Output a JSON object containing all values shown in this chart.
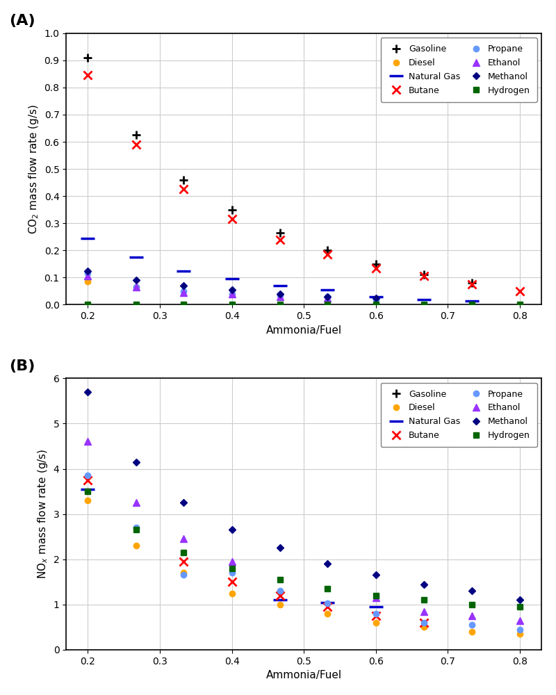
{
  "x_values": [
    0.2,
    0.267,
    0.333,
    0.4,
    0.467,
    0.533,
    0.6,
    0.667,
    0.733,
    0.8
  ],
  "A": {
    "ylabel": "CO$_2$ mass flow rate (g/s)",
    "xlabel": "Ammonia/Fuel",
    "ylim": [
      0,
      1.0
    ],
    "yticks": [
      0,
      0.1,
      0.2,
      0.3,
      0.4,
      0.5,
      0.6,
      0.7,
      0.8,
      0.9,
      1.0
    ],
    "gasoline": [
      0.91,
      0.625,
      0.46,
      0.35,
      0.265,
      0.2,
      0.15,
      0.11,
      0.08,
      null
    ],
    "diesel": [
      0.085,
      0.065,
      null,
      null,
      null,
      null,
      null,
      null,
      null,
      null
    ],
    "natural_gas": [
      0.245,
      0.175,
      0.125,
      0.095,
      0.07,
      0.055,
      0.03,
      0.02,
      0.015,
      null
    ],
    "butane": [
      0.845,
      0.59,
      0.425,
      0.315,
      0.24,
      0.185,
      0.135,
      0.105,
      0.075,
      0.05
    ],
    "propane": [
      0.115,
      0.065,
      0.05,
      0.04,
      0.035,
      0.03,
      0.02,
      null,
      null,
      null
    ],
    "ethanol": [
      0.105,
      0.065,
      0.045,
      0.04,
      0.03,
      0.025,
      null,
      null,
      null,
      null
    ],
    "methanol": [
      0.125,
      0.09,
      0.07,
      0.055,
      0.04,
      0.03,
      0.025,
      null,
      null,
      null
    ],
    "hydrogen": [
      0.0,
      0.0,
      0.0,
      0.0,
      0.0,
      0.0,
      0.0,
      0.0,
      0.0,
      0.0
    ]
  },
  "B": {
    "ylabel": "NO$_x$ mass flow rate (g/s)",
    "xlabel": "Ammonia/Fuel",
    "ylim": [
      0,
      6.0
    ],
    "yticks": [
      0,
      1,
      2,
      3,
      4,
      5,
      6
    ],
    "gasoline": [
      null,
      null,
      null,
      null,
      null,
      null,
      null,
      null,
      null,
      null
    ],
    "diesel": [
      3.3,
      2.3,
      1.7,
      1.25,
      1.0,
      0.8,
      0.6,
      0.5,
      0.4,
      0.35
    ],
    "natural_gas": [
      3.55,
      null,
      null,
      null,
      1.1,
      1.05,
      0.95,
      null,
      null,
      null
    ],
    "butane": [
      3.75,
      null,
      1.95,
      1.5,
      1.2,
      0.95,
      0.75,
      0.6,
      null,
      null
    ],
    "propane": [
      3.85,
      2.7,
      1.65,
      1.7,
      1.3,
      1.02,
      0.8,
      0.6,
      0.55,
      0.45
    ],
    "ethanol": [
      4.6,
      3.25,
      2.45,
      1.95,
      null,
      null,
      1.15,
      0.85,
      0.75,
      0.65
    ],
    "methanol": [
      5.7,
      4.15,
      3.25,
      2.65,
      2.25,
      1.9,
      1.65,
      1.45,
      1.3,
      1.1
    ],
    "hydrogen": [
      3.5,
      2.65,
      2.15,
      1.8,
      1.55,
      1.35,
      1.2,
      1.1,
      1.0,
      0.95
    ]
  },
  "panel_labels": [
    "(A)",
    "(B)"
  ],
  "background_color": "#ffffff",
  "grid_color": "#cccccc",
  "series": [
    {
      "key": "gasoline",
      "color": "#000000",
      "marker": "+",
      "markersize": 9,
      "mew": 2.0,
      "label": "Gasoline"
    },
    {
      "key": "diesel",
      "color": "#FFA500",
      "marker": "o",
      "markersize": 6,
      "mew": 1.0,
      "label": "Diesel"
    },
    {
      "key": "natural_gas",
      "color": "#0000CC",
      "marker": "_",
      "markersize": 14,
      "mew": 2.5,
      "label": "Natural Gas"
    },
    {
      "key": "butane",
      "color": "#FF0000",
      "marker": "x",
      "markersize": 8,
      "mew": 2.0,
      "label": "Butane"
    },
    {
      "key": "propane",
      "color": "#6699FF",
      "marker": "o",
      "markersize": 6,
      "mew": 1.0,
      "label": "Propane"
    },
    {
      "key": "ethanol",
      "color": "#9933FF",
      "marker": "^",
      "markersize": 7,
      "mew": 1.0,
      "label": "Ethanol"
    },
    {
      "key": "methanol",
      "color": "#000080",
      "marker": "D",
      "markersize": 5,
      "mew": 1.0,
      "label": "Methanol"
    },
    {
      "key": "hydrogen",
      "color": "#006400",
      "marker": "s",
      "markersize": 6,
      "mew": 1.0,
      "label": "Hydrogen"
    }
  ]
}
